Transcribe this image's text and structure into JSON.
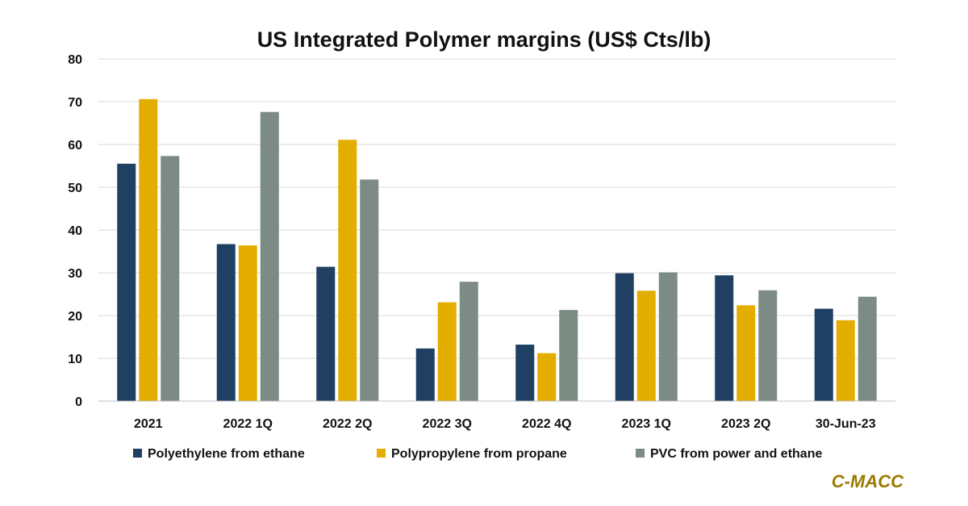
{
  "chart_data": {
    "type": "bar",
    "title": "US Integrated Polymer margins (US$ Cts/lb)",
    "categories": [
      "2021",
      "2022 1Q",
      "2022 2Q",
      "2022 3Q",
      "2022 4Q",
      "2023 1Q",
      "2023 2Q",
      "30-Jun-23"
    ],
    "series": [
      {
        "name": "Polyethylene from ethane",
        "color": "#1f3f63",
        "values": [
          55.5,
          36.7,
          31.4,
          12.3,
          13.2,
          29.9,
          29.4,
          21.6
        ]
      },
      {
        "name": "Polypropylene from propane",
        "color": "#e3ae00",
        "values": [
          70.6,
          36.4,
          61.1,
          23.1,
          11.2,
          25.8,
          22.4,
          18.9
        ]
      },
      {
        "name": "PVC from power and ethane",
        "color": "#7c8c84",
        "values": [
          57.3,
          67.6,
          51.8,
          27.9,
          21.3,
          30.1,
          25.9,
          24.4
        ]
      }
    ],
    "ylim": [
      0,
      80
    ],
    "yticks": [
      "0",
      "10",
      "20",
      "30",
      "40",
      "50",
      "60",
      "70",
      "80"
    ],
    "grid": true,
    "legend_position": "bottom"
  },
  "brand": {
    "name": "C-MACC",
    "color": "#9a7a00"
  }
}
